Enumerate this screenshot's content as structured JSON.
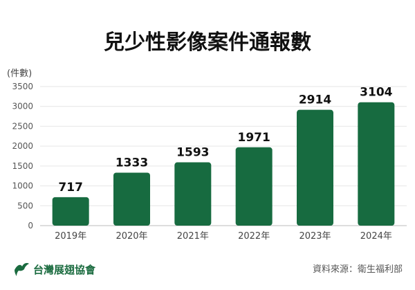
{
  "chart_data": {
    "type": "bar",
    "title": "兒少性影像案件通報數",
    "ylabel": "(件數)",
    "xlabel": "",
    "categories": [
      "2019年",
      "2020年",
      "2021年",
      "2022年",
      "2023年",
      "2024年"
    ],
    "values": [
      717,
      1333,
      1593,
      1971,
      2914,
      3104
    ],
    "ylim": [
      0,
      3500
    ],
    "yticks": [
      0,
      500,
      1000,
      1500,
      2000,
      2500,
      3000,
      3500
    ],
    "grid": true,
    "bar_color": "#176b40",
    "data_labels": true
  },
  "footer": {
    "logo_text": "台灣展翅協會",
    "logo_icon": "bird-logo-icon",
    "source": "資料來源：衛生福利部"
  },
  "colors": {
    "brand": "#1a6b3f",
    "grid": "#e6e6e6"
  }
}
